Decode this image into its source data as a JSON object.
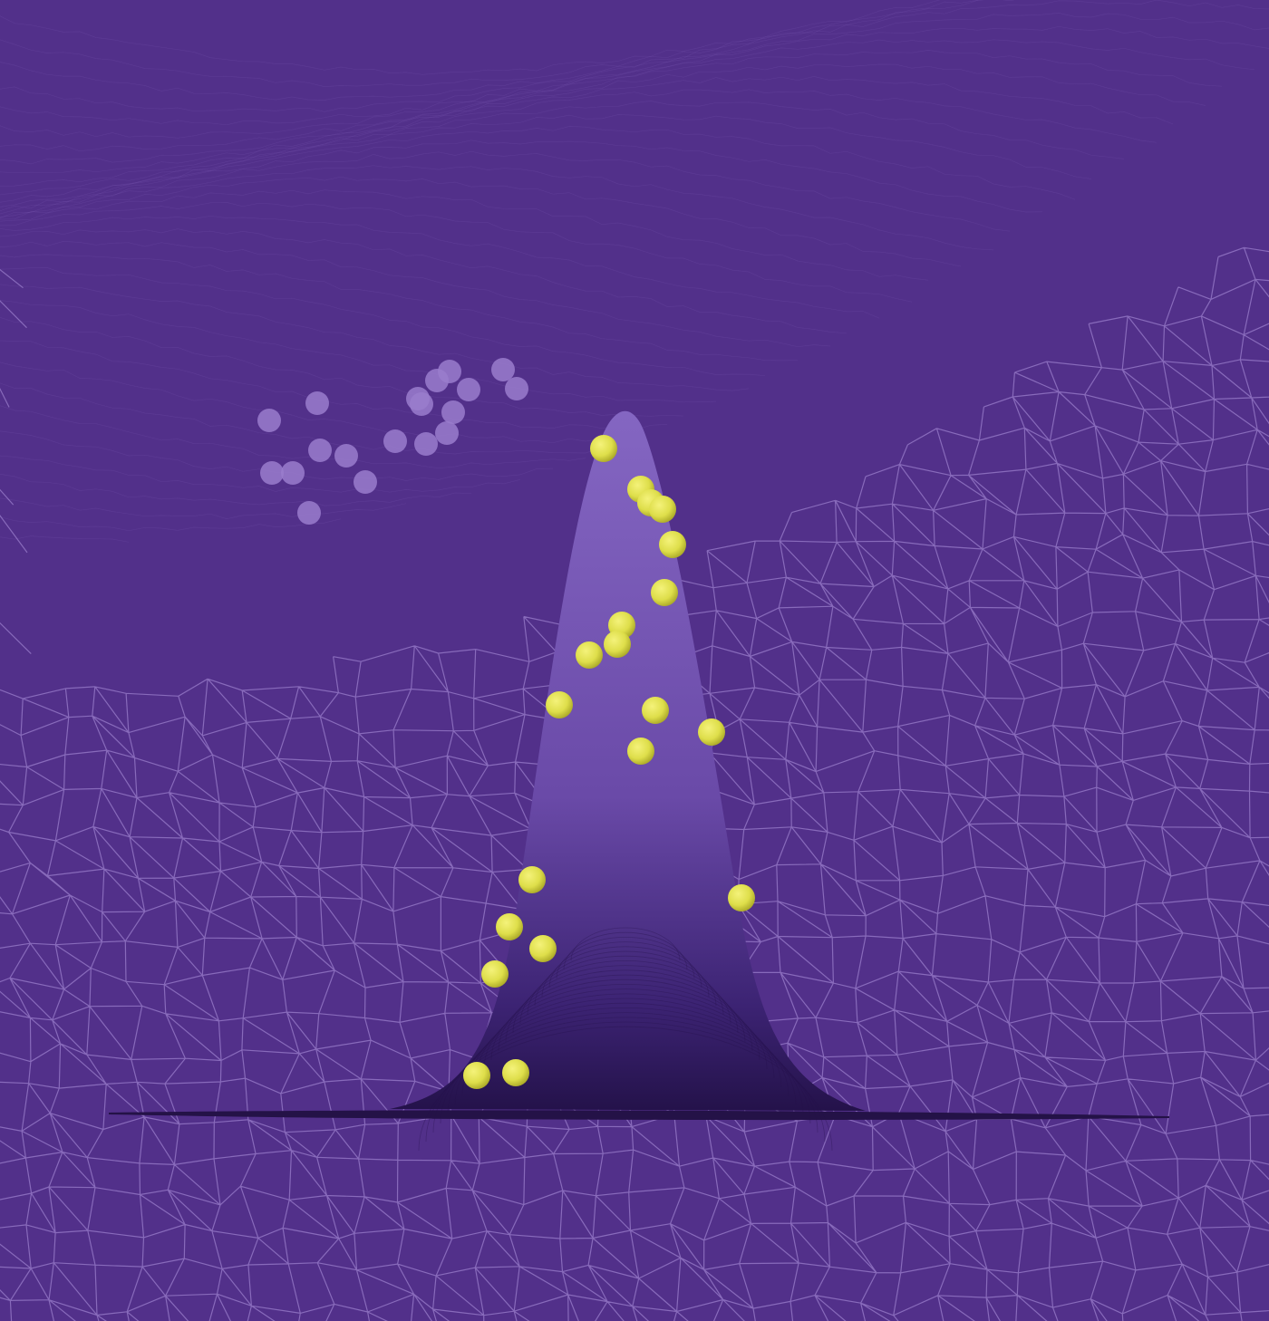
{
  "palette": {
    "background": "#52308a",
    "mesh_line": "#a487d9",
    "peak_fill_top": "#7a5ab8",
    "peak_fill_bottom": "#2e1a5c",
    "dot_yellow": "#dede4a",
    "dot_lavender": "#9a7ccc"
  }
}
